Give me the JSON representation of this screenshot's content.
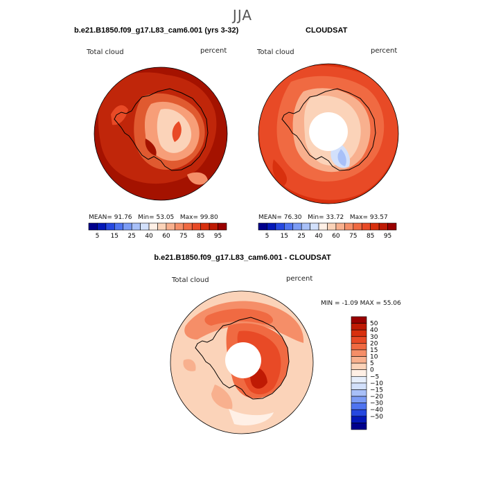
{
  "season": "JJA",
  "colors": {
    "scale": [
      "#00008c",
      "#0418b8",
      "#2648e0",
      "#4f74f0",
      "#7c9cf5",
      "#a8c0f8",
      "#d2e0fb",
      "#fff0e6",
      "#fbd3b9",
      "#f8b08e",
      "#f58e68",
      "#f06a42",
      "#e84a26",
      "#d8300e",
      "#bf1a04",
      "#990000"
    ],
    "diff_scale": [
      "#00008c",
      "#0418b8",
      "#2648e0",
      "#4f74f0",
      "#7c9cf5",
      "#a8c0f8",
      "#d2e0fb",
      "#e6eefc",
      "#fff0e6",
      "#fbd3b9",
      "#f8b08e",
      "#f58e68",
      "#f06a42",
      "#e84a26",
      "#d8300e",
      "#bf1a04",
      "#990000"
    ]
  },
  "chart_data": [
    {
      "type": "heatmap",
      "title": "b.e21.B1850.f09_g17.L83_cam6.001 (yrs 3-32)",
      "variable": "Total cloud",
      "units": "percent",
      "projection": "south polar stereographic",
      "stats": {
        "mean_label": "MEAN=",
        "mean": "91.76",
        "min_label": "Min=",
        "min": "53.05",
        "max_label": "Max=",
        "max": "99.80"
      },
      "colorbar_levels": [
        5,
        10,
        15,
        20,
        25,
        30,
        40,
        50,
        60,
        70,
        75,
        80,
        85,
        90,
        95
      ],
      "colorbar_tick_labels": [
        "5",
        "15",
        "25",
        "40",
        "60",
        "75",
        "85",
        "95"
      ]
    },
    {
      "type": "heatmap",
      "title": "CLOUDSAT",
      "variable": "Total cloud",
      "units": "percent",
      "projection": "south polar stereographic",
      "stats": {
        "mean_label": "MEAN=",
        "mean": "76.30",
        "min_label": "Min=",
        "min": "33.72",
        "max_label": "Max=",
        "max": "93.57"
      },
      "colorbar_levels": [
        5,
        10,
        15,
        20,
        25,
        30,
        40,
        50,
        60,
        70,
        75,
        80,
        85,
        90,
        95
      ],
      "colorbar_tick_labels": [
        "5",
        "15",
        "25",
        "40",
        "60",
        "75",
        "85",
        "95"
      ]
    },
    {
      "type": "heatmap",
      "title": "b.e21.B1850.f09_g17.L83_cam6.001 - CLOUDSAT",
      "variable": "Total cloud",
      "units": "percent",
      "projection": "south polar stereographic",
      "stats": {
        "min_label": "MIN =",
        "min": "-1.09",
        "max_label": "MAX =",
        "max": "55.06"
      },
      "colorbar_levels": [
        50,
        40,
        30,
        20,
        15,
        10,
        5,
        0,
        -5,
        -10,
        -15,
        -20,
        -30,
        -40,
        -50
      ],
      "colorbar_tick_labels": [
        "50",
        "40",
        "30",
        "20",
        "15",
        "10",
        "5",
        "0",
        "−5",
        "−10",
        "−15",
        "−20",
        "−30",
        "−40",
        "−50"
      ]
    }
  ]
}
